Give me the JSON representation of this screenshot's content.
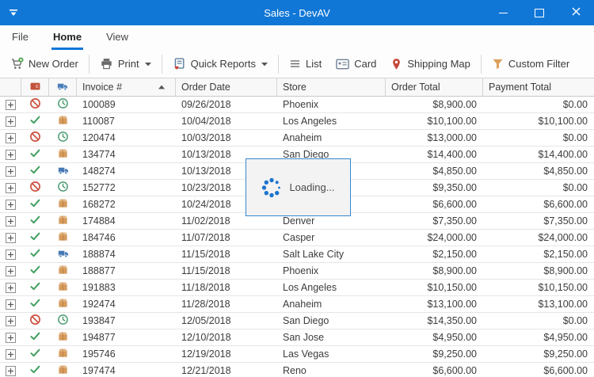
{
  "window": {
    "title": "Sales - DevAV"
  },
  "ribbon": {
    "tabs": [
      {
        "label": "File",
        "active": false
      },
      {
        "label": "Home",
        "active": true
      },
      {
        "label": "View",
        "active": false
      }
    ]
  },
  "toolbar": {
    "new_order": {
      "label": "New Order",
      "icon": "cart-plus-icon",
      "has_dropdown": false
    },
    "print": {
      "label": "Print",
      "icon": "printer-icon",
      "has_dropdown": true
    },
    "quick_reports": {
      "label": "Quick Reports",
      "icon": "report-icon",
      "has_dropdown": true
    },
    "list": {
      "label": "List",
      "icon": "list-icon",
      "has_dropdown": false
    },
    "card": {
      "label": "Card",
      "icon": "card-icon",
      "has_dropdown": false
    },
    "shipping_map": {
      "label": "Shipping Map",
      "icon": "map-pin-icon",
      "has_dropdown": false
    },
    "custom_filter": {
      "label": "Custom Filter",
      "icon": "funnel-icon",
      "has_dropdown": false
    }
  },
  "loading": {
    "label": "Loading..."
  },
  "grid": {
    "columns": [
      {
        "key": "expand",
        "label": "",
        "icon": null
      },
      {
        "key": "payment_status",
        "label": "",
        "icon": "wallet-icon"
      },
      {
        "key": "shipping_status",
        "label": "",
        "icon": "truck-icon"
      },
      {
        "key": "invoice",
        "label": "Invoice #",
        "sort": "asc"
      },
      {
        "key": "order_date",
        "label": "Order Date"
      },
      {
        "key": "store",
        "label": "Store"
      },
      {
        "key": "order_total",
        "label": "Order Total"
      },
      {
        "key": "payment_total",
        "label": "Payment Total"
      }
    ],
    "icon_map": {
      "blocked": "blocked-icon",
      "ok": "check-icon",
      "pending": "clock-icon",
      "packed": "box-icon",
      "shipped": "truck-icon"
    },
    "rows": [
      {
        "status": "blocked",
        "shipping": "pending",
        "invoice": "100089",
        "order_date": "09/26/2018",
        "store": "Phoenix",
        "order_total": "$8,900.00",
        "payment_total": "$0.00"
      },
      {
        "status": "ok",
        "shipping": "packed",
        "invoice": "110087",
        "order_date": "10/04/2018",
        "store": "Los Angeles",
        "order_total": "$10,100.00",
        "payment_total": "$10,100.00"
      },
      {
        "status": "blocked",
        "shipping": "pending",
        "invoice": "120474",
        "order_date": "10/03/2018",
        "store": "Anaheim",
        "order_total": "$13,000.00",
        "payment_total": "$0.00"
      },
      {
        "status": "ok",
        "shipping": "packed",
        "invoice": "134774",
        "order_date": "10/13/2018",
        "store": "San Diego",
        "order_total": "$14,400.00",
        "payment_total": "$14,400.00"
      },
      {
        "status": "ok",
        "shipping": "shipped",
        "invoice": "148274",
        "order_date": "10/13/2018",
        "store": "",
        "order_total": "$4,850.00",
        "payment_total": "$4,850.00"
      },
      {
        "status": "blocked",
        "shipping": "pending",
        "invoice": "152772",
        "order_date": "10/23/2018",
        "store": "",
        "order_total": "$9,350.00",
        "payment_total": "$0.00"
      },
      {
        "status": "ok",
        "shipping": "packed",
        "invoice": "168272",
        "order_date": "10/24/2018",
        "store": "",
        "order_total": "$6,600.00",
        "payment_total": "$6,600.00"
      },
      {
        "status": "ok",
        "shipping": "packed",
        "invoice": "174884",
        "order_date": "11/02/2018",
        "store": "Denver",
        "order_total": "$7,350.00",
        "payment_total": "$7,350.00"
      },
      {
        "status": "ok",
        "shipping": "packed",
        "invoice": "184746",
        "order_date": "11/07/2018",
        "store": "Casper",
        "order_total": "$24,000.00",
        "payment_total": "$24,000.00"
      },
      {
        "status": "ok",
        "shipping": "shipped",
        "invoice": "188874",
        "order_date": "11/15/2018",
        "store": "Salt Lake City",
        "order_total": "$2,150.00",
        "payment_total": "$2,150.00"
      },
      {
        "status": "ok",
        "shipping": "packed",
        "invoice": "188877",
        "order_date": "11/15/2018",
        "store": "Phoenix",
        "order_total": "$8,900.00",
        "payment_total": "$8,900.00"
      },
      {
        "status": "ok",
        "shipping": "packed",
        "invoice": "191883",
        "order_date": "11/18/2018",
        "store": "Los Angeles",
        "order_total": "$10,150.00",
        "payment_total": "$10,150.00"
      },
      {
        "status": "ok",
        "shipping": "packed",
        "invoice": "192474",
        "order_date": "11/28/2018",
        "store": "Anaheim",
        "order_total": "$13,100.00",
        "payment_total": "$13,100.00"
      },
      {
        "status": "blocked",
        "shipping": "pending",
        "invoice": "193847",
        "order_date": "12/05/2018",
        "store": "San Diego",
        "order_total": "$14,350.00",
        "payment_total": "$0.00"
      },
      {
        "status": "ok",
        "shipping": "packed",
        "invoice": "194877",
        "order_date": "12/10/2018",
        "store": "San Jose",
        "order_total": "$4,950.00",
        "payment_total": "$4,950.00"
      },
      {
        "status": "ok",
        "shipping": "packed",
        "invoice": "195746",
        "order_date": "12/19/2018",
        "store": "Las Vegas",
        "order_total": "$9,250.00",
        "payment_total": "$9,250.00"
      },
      {
        "status": "ok",
        "shipping": "packed",
        "invoice": "197474",
        "order_date": "12/21/2018",
        "store": "Reno",
        "order_total": "$6,600.00",
        "payment_total": "$6,600.00"
      }
    ]
  },
  "colors": {
    "titlebar": "#1177d7",
    "accent": "#1177d7",
    "status_blocked": "#cd5240",
    "status_ok": "#3f9e5f",
    "shipping_pending": "#4d9d73",
    "shipping_packed": "#d69c5e",
    "shipping_shipped": "#4678b4",
    "loading_border": "#3787cf",
    "spinner": "#1c74cf"
  }
}
